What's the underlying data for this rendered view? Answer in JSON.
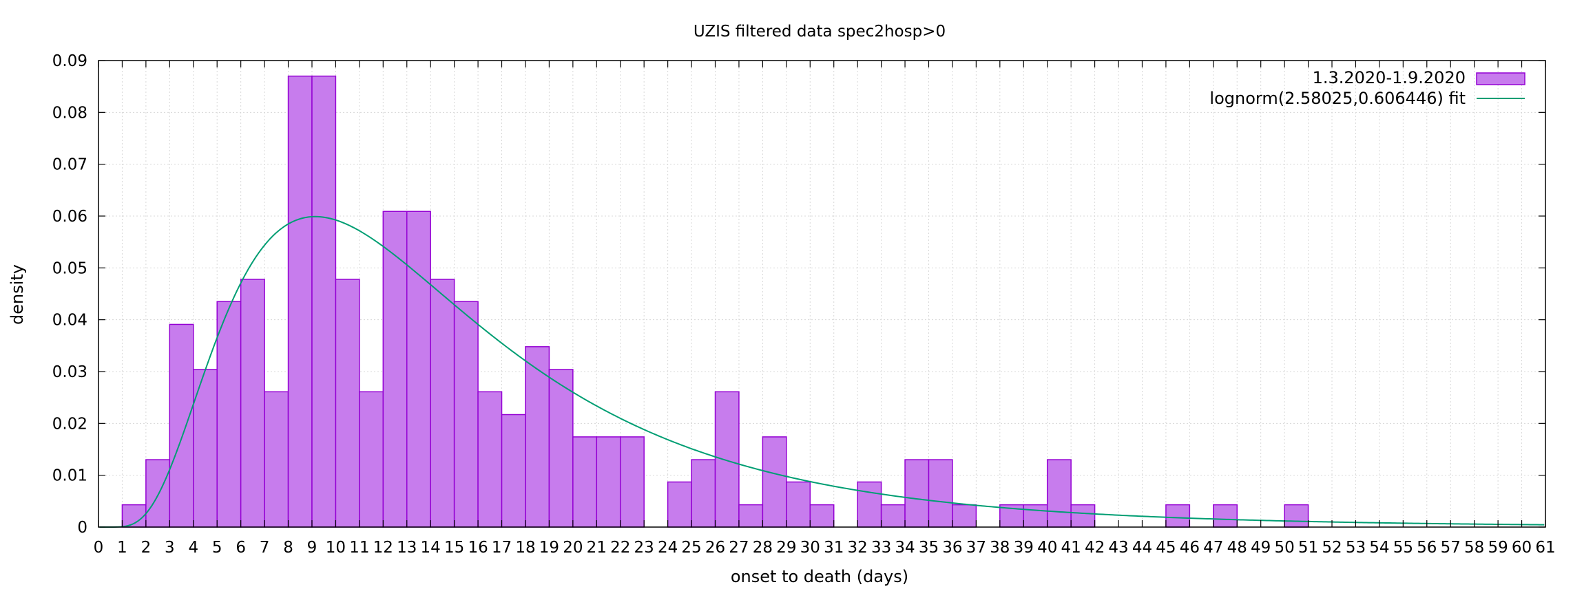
{
  "chart_data": {
    "type": "bar",
    "title": "UZIS filtered data spec2hosp>0",
    "xlabel": "onset to death (days)",
    "ylabel": "density",
    "xlim": [
      0,
      61
    ],
    "ylim": [
      0,
      0.09
    ],
    "x_ticks": [
      "0",
      "1",
      "2",
      "3",
      "4",
      "5",
      "6",
      "7",
      "8",
      "9",
      "10",
      "11",
      "12",
      "13",
      "14",
      "15",
      "16",
      "17",
      "18",
      "19",
      "20",
      "21",
      "22",
      "23",
      "24",
      "25",
      "26",
      "27",
      "28",
      "29",
      "30",
      "31",
      "32",
      "33",
      "34",
      "35",
      "36",
      "37",
      "38",
      "39",
      "40",
      "41",
      "42",
      "43",
      "44",
      "45",
      "46",
      "47",
      "48",
      "49",
      "50",
      "51",
      "52",
      "53",
      "54",
      "55",
      "56",
      "57",
      "58",
      "59",
      "60",
      "61"
    ],
    "y_ticks": [
      "0",
      "0.01",
      "0.02",
      "0.03",
      "0.04",
      "0.05",
      "0.06",
      "0.07",
      "0.08",
      "0.09"
    ],
    "grid": true,
    "legend_position": "top-right",
    "series": [
      {
        "name": "1.3.2020-1.9.2020",
        "kind": "histogram",
        "color": "#c77ced",
        "edge_color": "#9400d3",
        "x": [
          2,
          3,
          4,
          5,
          6,
          7,
          8,
          9,
          10,
          11,
          12,
          13,
          14,
          15,
          16,
          17,
          18,
          19,
          20,
          21,
          22,
          23,
          25,
          26,
          27,
          28,
          29,
          30,
          31,
          33,
          34,
          35,
          36,
          37,
          39,
          40,
          41,
          42,
          46,
          48,
          51
        ],
        "values": [
          0.0043,
          0.013,
          0.0391,
          0.0304,
          0.0435,
          0.0478,
          0.0261,
          0.087,
          0.087,
          0.0478,
          0.0261,
          0.0609,
          0.0609,
          0.0478,
          0.0435,
          0.0261,
          0.0217,
          0.0348,
          0.0304,
          0.0174,
          0.0174,
          0.0174,
          0.0087,
          0.013,
          0.0261,
          0.0043,
          0.0174,
          0.0087,
          0.0043,
          0.0087,
          0.0043,
          0.013,
          0.013,
          0.0043,
          0.0043,
          0.0043,
          0.013,
          0.0043,
          0.0043,
          0.0043,
          0.0043
        ]
      },
      {
        "name": "lognorm(2.58025,0.606446) fit",
        "kind": "line",
        "color": "#009e73",
        "mu": 2.58025,
        "sigma": 0.606446
      }
    ]
  }
}
